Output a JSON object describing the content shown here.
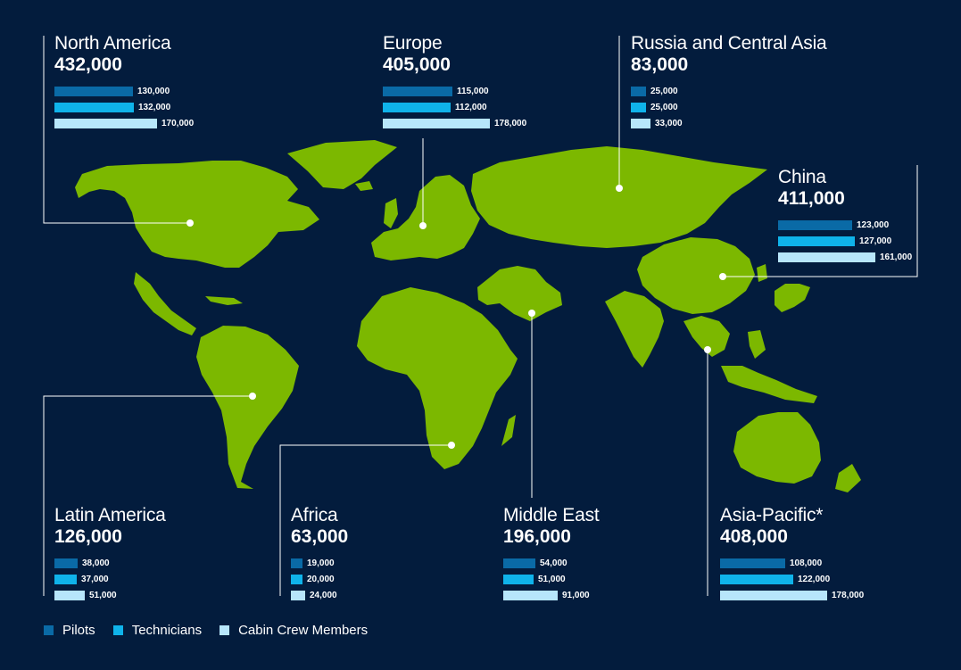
{
  "colors": {
    "background": "#031c3d",
    "land": "#7cb800",
    "pilots": "#0a6aa6",
    "technicians": "#0fb3ea",
    "cabin_crew": "#b7e6fb",
    "connector": "#ffffff"
  },
  "legend": {
    "pilots": "Pilots",
    "technicians": "Technicians",
    "cabin_crew": "Cabin Crew Members"
  },
  "regions": [
    {
      "name": "North America",
      "total": "432,000",
      "pilots": {
        "label": "130,000",
        "value": 130000
      },
      "technicians": {
        "label": "132,000",
        "value": 132000
      },
      "cabin_crew": {
        "label": "170,000",
        "value": 170000
      }
    },
    {
      "name": "Europe",
      "total": "405,000",
      "pilots": {
        "label": "115,000",
        "value": 115000
      },
      "technicians": {
        "label": "112,000",
        "value": 112000
      },
      "cabin_crew": {
        "label": "178,000",
        "value": 178000
      }
    },
    {
      "name": "Russia and Central Asia",
      "total": "83,000",
      "pilots": {
        "label": "25,000",
        "value": 25000
      },
      "technicians": {
        "label": "25,000",
        "value": 25000
      },
      "cabin_crew": {
        "label": "33,000",
        "value": 33000
      }
    },
    {
      "name": "China",
      "total": "411,000",
      "pilots": {
        "label": "123,000",
        "value": 123000
      },
      "technicians": {
        "label": "127,000",
        "value": 127000
      },
      "cabin_crew": {
        "label": "161,000",
        "value": 161000
      }
    },
    {
      "name": "Latin America",
      "total": "126,000",
      "pilots": {
        "label": "38,000",
        "value": 38000
      },
      "technicians": {
        "label": "37,000",
        "value": 37000
      },
      "cabin_crew": {
        "label": "51,000",
        "value": 51000
      }
    },
    {
      "name": "Africa",
      "total": "63,000",
      "pilots": {
        "label": "19,000",
        "value": 19000
      },
      "technicians": {
        "label": "20,000",
        "value": 20000
      },
      "cabin_crew": {
        "label": "24,000",
        "value": 24000
      }
    },
    {
      "name": "Middle East",
      "total": "196,000",
      "pilots": {
        "label": "54,000",
        "value": 54000
      },
      "technicians": {
        "label": "51,000",
        "value": 51000
      },
      "cabin_crew": {
        "label": "91,000",
        "value": 91000
      }
    },
    {
      "name": "Asia-Pacific*",
      "total": "408,000",
      "pilots": {
        "label": "108,000",
        "value": 108000
      },
      "technicians": {
        "label": "122,000",
        "value": 122000
      },
      "cabin_crew": {
        "label": "178,000",
        "value": 178000
      }
    }
  ]
}
